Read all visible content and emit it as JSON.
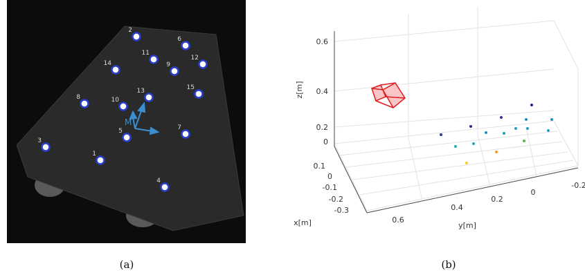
{
  "panel_a": {
    "caption": "(a)",
    "frame_label": "M",
    "markers": [
      "1",
      "2",
      "3",
      "4",
      "5",
      "6",
      "7",
      "8",
      "9",
      "10",
      "11",
      "12",
      "13",
      "14",
      "15"
    ]
  },
  "panel_b": {
    "caption": "(b)",
    "z_label": "z[m]",
    "x_label": "x[m]",
    "y_label": "y[m]",
    "z_ticks": [
      "0.6",
      "0.4",
      "0.2",
      "0"
    ],
    "x_ticks": [
      "0.1",
      "0",
      "-0.1",
      "-0.2",
      "-0.3"
    ],
    "y_ticks": [
      "0.6",
      "0.4",
      "0.2",
      "0",
      "-0.2"
    ]
  }
}
